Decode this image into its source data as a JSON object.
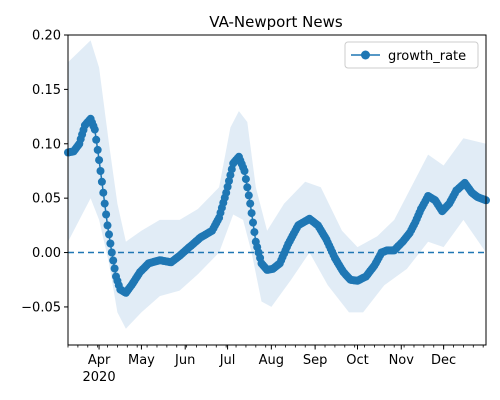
{
  "chart_data": {
    "type": "line",
    "title": "VA-Newport News",
    "xlabel": "",
    "ylabel": "",
    "x_start_date": "2020-03-10",
    "x_end_date": "2020-12-31",
    "xlim": [
      "2020-03-10",
      "2020-12-31"
    ],
    "ylim": [
      -0.085,
      0.2
    ],
    "yticks": [
      -0.05,
      0.0,
      0.05,
      0.1,
      0.15,
      0.2
    ],
    "ytick_labels": [
      "−0.05",
      "0.00",
      "0.05",
      "0.10",
      "0.15",
      "0.20"
    ],
    "xticks": [
      {
        "date": "2020-04-01",
        "label": "Apr",
        "sublabel": "2020"
      },
      {
        "date": "2020-05-01",
        "label": "May"
      },
      {
        "date": "2020-06-01",
        "label": "Jun"
      },
      {
        "date": "2020-07-01",
        "label": "Jul"
      },
      {
        "date": "2020-08-01",
        "label": "Aug"
      },
      {
        "date": "2020-09-01",
        "label": "Sep"
      },
      {
        "date": "2020-10-01",
        "label": "Oct"
      },
      {
        "date": "2020-11-01",
        "label": "Nov"
      },
      {
        "date": "2020-12-01",
        "label": "Dec"
      }
    ],
    "legend": {
      "position": "top-right",
      "entries": [
        "growth_rate"
      ]
    },
    "reference_line": {
      "y": 0.0,
      "style": "dashed"
    },
    "colors": {
      "line": "#1f77b4",
      "band": "#dce9f5"
    },
    "series": [
      {
        "name": "growth_rate",
        "points": [
          [
            "2020-03-10",
            0.092
          ],
          [
            "2020-03-14",
            0.093
          ],
          [
            "2020-03-18",
            0.1
          ],
          [
            "2020-03-22",
            0.117
          ],
          [
            "2020-03-26",
            0.123
          ],
          [
            "2020-03-29",
            0.113
          ],
          [
            "2020-04-01",
            0.085
          ],
          [
            "2020-04-04",
            0.055
          ],
          [
            "2020-04-07",
            0.025
          ],
          [
            "2020-04-10",
            0.0
          ],
          [
            "2020-04-13",
            -0.022
          ],
          [
            "2020-04-16",
            -0.034
          ],
          [
            "2020-04-20",
            -0.037
          ],
          [
            "2020-04-24",
            -0.03
          ],
          [
            "2020-04-30",
            -0.018
          ],
          [
            "2020-05-06",
            -0.01
          ],
          [
            "2020-05-14",
            -0.007
          ],
          [
            "2020-05-22",
            -0.009
          ],
          [
            "2020-05-28",
            -0.003
          ],
          [
            "2020-06-04",
            0.005
          ],
          [
            "2020-06-12",
            0.014
          ],
          [
            "2020-06-20",
            0.02
          ],
          [
            "2020-06-25",
            0.032
          ],
          [
            "2020-06-30",
            0.055
          ],
          [
            "2020-07-05",
            0.082
          ],
          [
            "2020-07-09",
            0.088
          ],
          [
            "2020-07-13",
            0.075
          ],
          [
            "2020-07-17",
            0.045
          ],
          [
            "2020-07-21",
            0.01
          ],
          [
            "2020-07-25",
            -0.01
          ],
          [
            "2020-07-29",
            -0.016
          ],
          [
            "2020-08-02",
            -0.015
          ],
          [
            "2020-08-07",
            -0.01
          ],
          [
            "2020-08-13",
            0.008
          ],
          [
            "2020-08-20",
            0.025
          ],
          [
            "2020-08-28",
            0.031
          ],
          [
            "2020-09-03",
            0.025
          ],
          [
            "2020-09-09",
            0.012
          ],
          [
            "2020-09-15",
            -0.005
          ],
          [
            "2020-09-21",
            -0.018
          ],
          [
            "2020-09-26",
            -0.025
          ],
          [
            "2020-10-01",
            -0.026
          ],
          [
            "2020-10-07",
            -0.022
          ],
          [
            "2020-10-13",
            -0.012
          ],
          [
            "2020-10-18",
            0.0
          ],
          [
            "2020-10-22",
            0.002
          ],
          [
            "2020-10-27",
            0.002
          ],
          [
            "2020-11-02",
            0.01
          ],
          [
            "2020-11-07",
            0.018
          ],
          [
            "2020-11-11",
            0.028
          ],
          [
            "2020-11-15",
            0.04
          ],
          [
            "2020-11-20",
            0.052
          ],
          [
            "2020-11-25",
            0.048
          ],
          [
            "2020-11-30",
            0.038
          ],
          [
            "2020-12-05",
            0.045
          ],
          [
            "2020-12-10",
            0.057
          ],
          [
            "2020-12-16",
            0.064
          ],
          [
            "2020-12-21",
            0.055
          ],
          [
            "2020-12-25",
            0.051
          ],
          [
            "2020-12-31",
            0.048
          ]
        ],
        "band_upper": [
          [
            "2020-03-10",
            0.175
          ],
          [
            "2020-03-26",
            0.195
          ],
          [
            "2020-04-01",
            0.17
          ],
          [
            "2020-04-08",
            0.1
          ],
          [
            "2020-04-14",
            0.045
          ],
          [
            "2020-04-20",
            0.01
          ],
          [
            "2020-05-01",
            0.02
          ],
          [
            "2020-05-14",
            0.03
          ],
          [
            "2020-05-28",
            0.03
          ],
          [
            "2020-06-10",
            0.04
          ],
          [
            "2020-06-25",
            0.06
          ],
          [
            "2020-07-03",
            0.115
          ],
          [
            "2020-07-09",
            0.13
          ],
          [
            "2020-07-15",
            0.12
          ],
          [
            "2020-07-21",
            0.06
          ],
          [
            "2020-07-29",
            0.02
          ],
          [
            "2020-08-10",
            0.045
          ],
          [
            "2020-08-25",
            0.065
          ],
          [
            "2020-09-05",
            0.06
          ],
          [
            "2020-09-20",
            0.02
          ],
          [
            "2020-10-01",
            0.005
          ],
          [
            "2020-10-15",
            0.015
          ],
          [
            "2020-10-27",
            0.03
          ],
          [
            "2020-11-10",
            0.065
          ],
          [
            "2020-11-20",
            0.09
          ],
          [
            "2020-12-01",
            0.08
          ],
          [
            "2020-12-15",
            0.105
          ],
          [
            "2020-12-31",
            0.1
          ]
        ],
        "band_lower": [
          [
            "2020-03-10",
            0.01
          ],
          [
            "2020-03-26",
            0.05
          ],
          [
            "2020-04-01",
            0.03
          ],
          [
            "2020-04-08",
            -0.01
          ],
          [
            "2020-04-14",
            -0.055
          ],
          [
            "2020-04-20",
            -0.07
          ],
          [
            "2020-05-01",
            -0.055
          ],
          [
            "2020-05-14",
            -0.04
          ],
          [
            "2020-05-28",
            -0.035
          ],
          [
            "2020-06-10",
            -0.02
          ],
          [
            "2020-06-25",
            0.0
          ],
          [
            "2020-07-05",
            0.035
          ],
          [
            "2020-07-12",
            0.03
          ],
          [
            "2020-07-18",
            0.0
          ],
          [
            "2020-07-25",
            -0.045
          ],
          [
            "2020-08-01",
            -0.05
          ],
          [
            "2020-08-15",
            -0.025
          ],
          [
            "2020-08-28",
            0.0
          ],
          [
            "2020-09-10",
            -0.03
          ],
          [
            "2020-09-25",
            -0.055
          ],
          [
            "2020-10-05",
            -0.055
          ],
          [
            "2020-10-20",
            -0.03
          ],
          [
            "2020-11-05",
            -0.015
          ],
          [
            "2020-11-20",
            0.01
          ],
          [
            "2020-12-01",
            0.005
          ],
          [
            "2020-12-15",
            0.03
          ],
          [
            "2020-12-31",
            0.0
          ]
        ]
      }
    ]
  }
}
